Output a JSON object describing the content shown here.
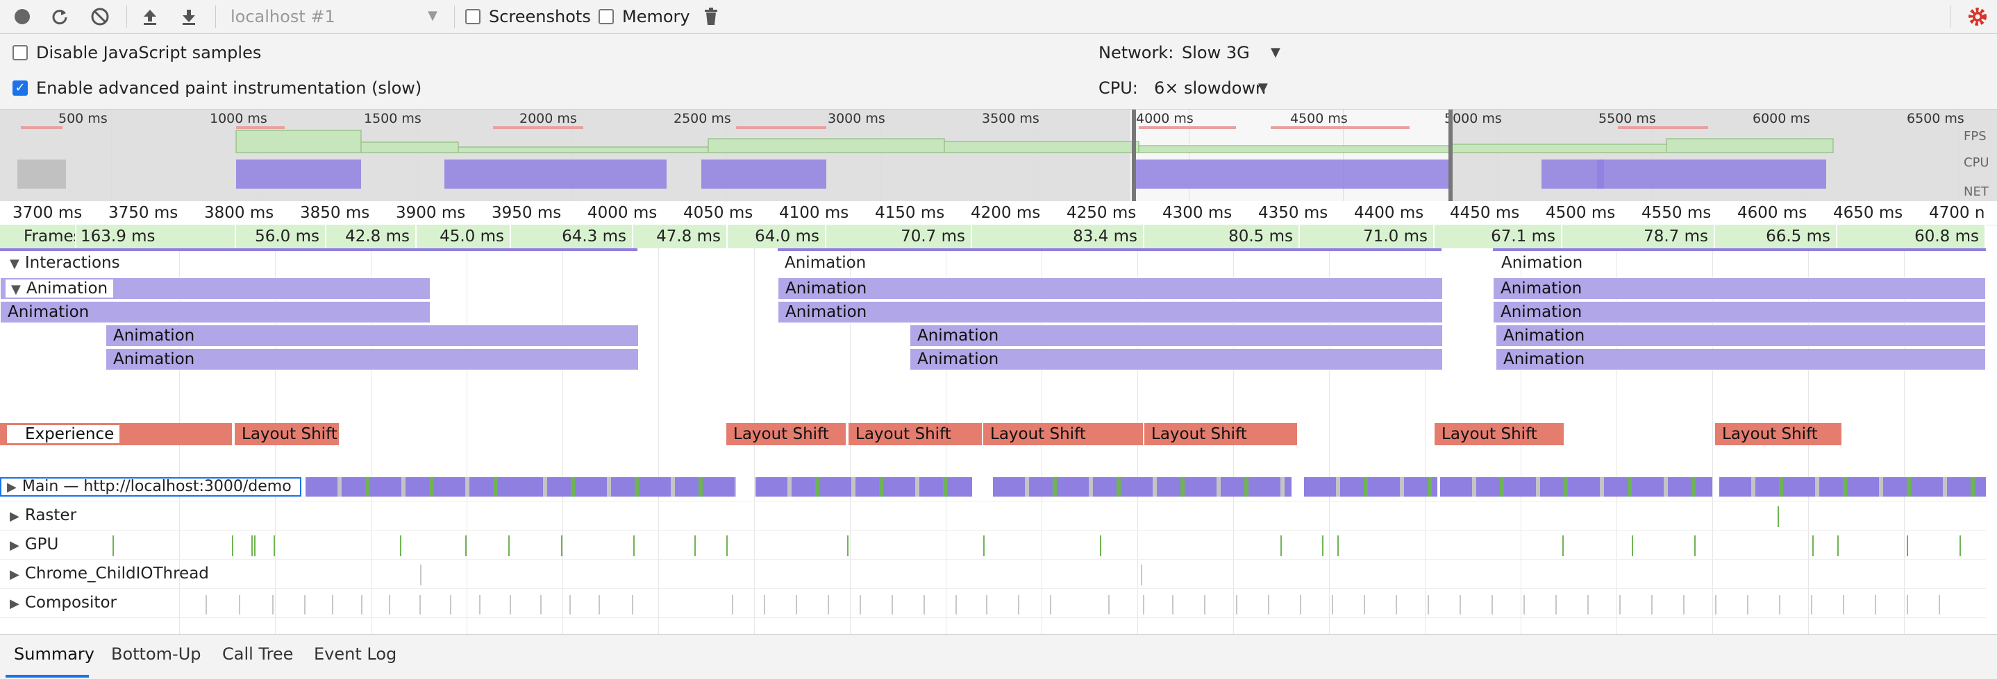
{
  "toolbar": {
    "target_select": "localhost #1",
    "screenshots_label": "Screenshots",
    "memory_label": "Memory"
  },
  "settings": {
    "disable_js_label": "Disable JavaScript samples",
    "disable_js_checked": false,
    "paint_label": "Enable advanced paint instrumentation (slow)",
    "paint_checked": true,
    "network_label": "Network:",
    "network_value": "Slow 3G",
    "cpu_label": "CPU:",
    "cpu_value": "6× slowdown"
  },
  "overview": {
    "ticks": [
      "500 ms",
      "1000 ms",
      "1500 ms",
      "2000 ms",
      "2500 ms",
      "3000 ms",
      "3500 ms",
      "4000 ms",
      "4500 ms",
      "5000 ms",
      "5500 ms",
      "6000 ms",
      "6500 ms"
    ],
    "side_labels": {
      "fps": "FPS",
      "cpu": "CPU",
      "net": "NET"
    }
  },
  "ruler": {
    "labels": [
      "3700 ms",
      "3750 ms",
      "3800 ms",
      "3850 ms",
      "3900 ms",
      "3950 ms",
      "4000 ms",
      "4050 ms",
      "4100 ms",
      "4150 ms",
      "4200 ms",
      "4250 ms",
      "4300 ms",
      "4350 ms",
      "4400 ms",
      "4450 ms",
      "4500 ms",
      "4550 ms",
      "4600 ms",
      "4650 ms",
      "4700 n"
    ]
  },
  "frames": {
    "label": "Frames",
    "items": [
      "163.9 ms",
      "56.0 ms",
      "42.8 ms",
      "45.0 ms",
      "64.3 ms",
      "47.8 ms",
      "64.0 ms",
      "70.7 ms",
      "83.4 ms",
      "80.5 ms",
      "71.0 ms",
      "67.1 ms",
      "78.7 ms",
      "66.5 ms",
      "60.8 ms"
    ]
  },
  "interactions": {
    "label": "Interactions",
    "group_label": "Animation",
    "items": [
      "Animation",
      "Animation",
      "Animation",
      "Animation",
      "Animation",
      "Animation",
      "Animation",
      "Animation",
      "Animation",
      "Animation",
      "Animation",
      "Animation",
      "Animation",
      "Animation",
      "Animation",
      "Animation",
      "Animation",
      "Animation"
    ]
  },
  "experience": {
    "label": "Experience",
    "shifts": [
      "Layout Shift",
      "Layout Shift",
      "Layout Shift",
      "Layout Shift",
      "Layout Shift",
      "Layout Shift",
      "Layout Shift"
    ]
  },
  "tracks": {
    "main": "Main — http://localhost:3000/demo",
    "raster": "Raster",
    "gpu": "GPU",
    "io": "Chrome_ChildIOThread",
    "compositor": "Compositor"
  },
  "bottom_tabs": [
    "Summary",
    "Bottom-Up",
    "Call Tree",
    "Event Log"
  ],
  "colors": {
    "frame": "#d8f2cf",
    "animation": "#b1a6e8",
    "layout_shift": "#e57d6e",
    "main": "#8f7fe0",
    "gpu": "#6fb453"
  },
  "icons": [
    "record-icon",
    "reload-icon",
    "clear-icon",
    "upload-icon",
    "download-icon",
    "trash-icon",
    "gear-icon"
  ]
}
